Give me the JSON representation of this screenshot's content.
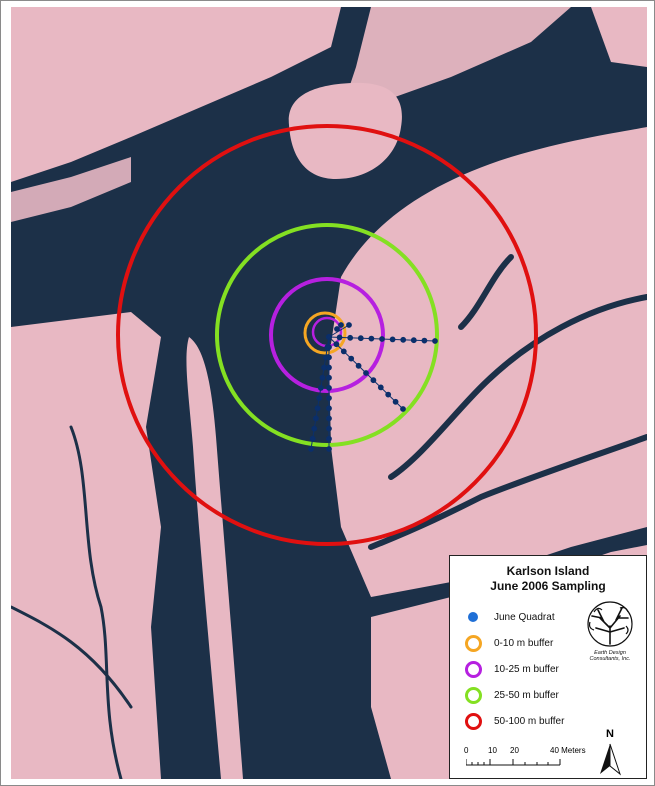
{
  "legend": {
    "title_line1": "Karlson Island",
    "title_line2": "June 2006 Sampling",
    "items": [
      {
        "label": "June Quadrat",
        "symbol": "dot",
        "color": "#1f6fd6"
      },
      {
        "label": "0-10 m buffer",
        "symbol": "ring",
        "color": "#f5a623"
      },
      {
        "label": "10-25 m buffer",
        "symbol": "ring",
        "color": "#b620e0"
      },
      {
        "label": "25-50 m buffer",
        "symbol": "ring",
        "color": "#84e022"
      },
      {
        "label": "50-100 m buffer",
        "symbol": "ring",
        "color": "#e01010"
      }
    ]
  },
  "logo": {
    "line1": "Earth Design",
    "line2": "Consultants, Inc."
  },
  "scale": {
    "ticks": [
      "0",
      "10",
      "20",
      "40 Meters"
    ]
  },
  "north": {
    "label": "N"
  },
  "colors": {
    "water": "#1b2f45",
    "marsh": "#e9b9c4",
    "quadrat": "#0b2f6b"
  }
}
